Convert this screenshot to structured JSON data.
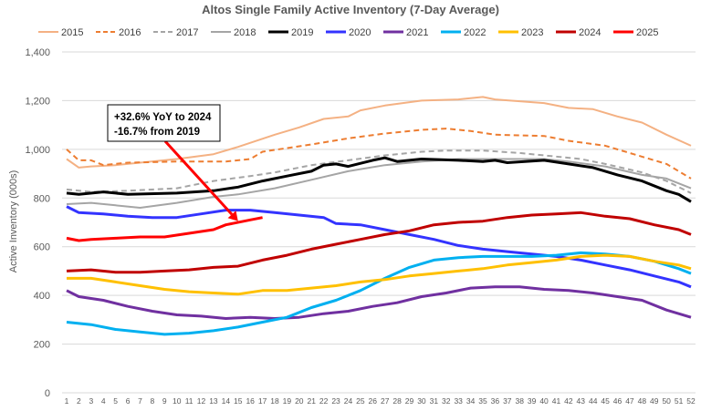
{
  "chart_data": {
    "type": "line",
    "title": "Altos Single Family Active Inventory (7-Day Average)",
    "xlabel": "",
    "ylabel": "Active Inventory (000s)",
    "ylim": [
      0,
      1400
    ],
    "yticks": [
      0,
      200,
      400,
      600,
      800,
      1000,
      1200,
      1400
    ],
    "ytick_labels": [
      "0",
      "200",
      "400",
      "600",
      "800",
      "1,000",
      "1,200",
      "1,400"
    ],
    "xlim": [
      1,
      52
    ],
    "grid": true,
    "legend_position": "top",
    "annotation": {
      "lines": [
        "+32.6% YoY to 2024",
        "-16.7% from 2019"
      ],
      "arrow_color": "#ff0000",
      "points_to": [
        15,
        705
      ]
    },
    "series": [
      {
        "name": "2015",
        "color": "#f4b183",
        "dash": false,
        "width": 2,
        "points": [
          [
            1,
            960
          ],
          [
            2,
            925
          ],
          [
            3,
            930
          ],
          [
            5,
            935
          ],
          [
            10,
            960
          ],
          [
            13,
            980
          ],
          [
            15,
            1010
          ],
          [
            18,
            1060
          ],
          [
            20,
            1090
          ],
          [
            22,
            1125
          ],
          [
            24,
            1135
          ],
          [
            25,
            1160
          ],
          [
            27,
            1180
          ],
          [
            30,
            1200
          ],
          [
            33,
            1205
          ],
          [
            35,
            1215
          ],
          [
            36,
            1205
          ],
          [
            40,
            1190
          ],
          [
            42,
            1170
          ],
          [
            44,
            1165
          ],
          [
            46,
            1135
          ],
          [
            48,
            1110
          ],
          [
            50,
            1060
          ],
          [
            52,
            1015
          ]
        ]
      },
      {
        "name": "2016",
        "color": "#ed7d31",
        "dash": true,
        "width": 2,
        "points": [
          [
            1,
            1000
          ],
          [
            2,
            955
          ],
          [
            3,
            955
          ],
          [
            4,
            935
          ],
          [
            6,
            945
          ],
          [
            10,
            950
          ],
          [
            14,
            950
          ],
          [
            16,
            960
          ],
          [
            17,
            990
          ],
          [
            19,
            1005
          ],
          [
            21,
            1020
          ],
          [
            24,
            1045
          ],
          [
            27,
            1065
          ],
          [
            30,
            1080
          ],
          [
            32,
            1085
          ],
          [
            34,
            1075
          ],
          [
            36,
            1060
          ],
          [
            40,
            1055
          ],
          [
            42,
            1035
          ],
          [
            45,
            1015
          ],
          [
            48,
            970
          ],
          [
            50,
            940
          ],
          [
            52,
            880
          ]
        ]
      },
      {
        "name": "2017",
        "color": "#a5a5a5",
        "dash": true,
        "width": 2,
        "points": [
          [
            1,
            835
          ],
          [
            3,
            825
          ],
          [
            6,
            830
          ],
          [
            10,
            840
          ],
          [
            13,
            870
          ],
          [
            16,
            890
          ],
          [
            18,
            905
          ],
          [
            21,
            935
          ],
          [
            24,
            955
          ],
          [
            27,
            975
          ],
          [
            30,
            990
          ],
          [
            32,
            995
          ],
          [
            35,
            995
          ],
          [
            38,
            985
          ],
          [
            40,
            975
          ],
          [
            43,
            960
          ],
          [
            45,
            940
          ],
          [
            48,
            905
          ],
          [
            50,
            870
          ],
          [
            52,
            820
          ]
        ]
      },
      {
        "name": "2018",
        "color": "#a5a5a5",
        "dash": false,
        "width": 2,
        "points": [
          [
            1,
            775
          ],
          [
            3,
            780
          ],
          [
            5,
            770
          ],
          [
            7,
            760
          ],
          [
            10,
            780
          ],
          [
            13,
            805
          ],
          [
            15,
            815
          ],
          [
            18,
            840
          ],
          [
            21,
            875
          ],
          [
            24,
            910
          ],
          [
            27,
            935
          ],
          [
            30,
            950
          ],
          [
            33,
            960
          ],
          [
            36,
            960
          ],
          [
            40,
            960
          ],
          [
            42,
            950
          ],
          [
            45,
            930
          ],
          [
            48,
            895
          ],
          [
            50,
            880
          ],
          [
            52,
            840
          ]
        ]
      },
      {
        "name": "2019",
        "color": "#000000",
        "dash": false,
        "width": 3,
        "points": [
          [
            1,
            820
          ],
          [
            2,
            815
          ],
          [
            4,
            825
          ],
          [
            5,
            820
          ],
          [
            6,
            815
          ],
          [
            10,
            820
          ],
          [
            13,
            830
          ],
          [
            15,
            845
          ],
          [
            17,
            870
          ],
          [
            19,
            890
          ],
          [
            21,
            910
          ],
          [
            22,
            935
          ],
          [
            23,
            940
          ],
          [
            24,
            930
          ],
          [
            26,
            955
          ],
          [
            27,
            965
          ],
          [
            28,
            950
          ],
          [
            30,
            960
          ],
          [
            33,
            955
          ],
          [
            35,
            950
          ],
          [
            36,
            955
          ],
          [
            37,
            945
          ],
          [
            40,
            955
          ],
          [
            42,
            940
          ],
          [
            44,
            925
          ],
          [
            46,
            895
          ],
          [
            48,
            870
          ],
          [
            50,
            830
          ],
          [
            51,
            815
          ],
          [
            52,
            785
          ]
        ]
      },
      {
        "name": "2020",
        "color": "#3333ff",
        "dash": false,
        "width": 3,
        "points": [
          [
            1,
            765
          ],
          [
            2,
            740
          ],
          [
            4,
            735
          ],
          [
            6,
            725
          ],
          [
            8,
            720
          ],
          [
            10,
            720
          ],
          [
            12,
            735
          ],
          [
            14,
            750
          ],
          [
            16,
            750
          ],
          [
            18,
            740
          ],
          [
            20,
            730
          ],
          [
            22,
            720
          ],
          [
            23,
            695
          ],
          [
            25,
            690
          ],
          [
            27,
            670
          ],
          [
            29,
            650
          ],
          [
            31,
            630
          ],
          [
            33,
            605
          ],
          [
            35,
            590
          ],
          [
            37,
            580
          ],
          [
            39,
            570
          ],
          [
            41,
            560
          ],
          [
            43,
            545
          ],
          [
            45,
            525
          ],
          [
            47,
            505
          ],
          [
            49,
            480
          ],
          [
            51,
            455
          ],
          [
            52,
            435
          ]
        ]
      },
      {
        "name": "2021",
        "color": "#7030a0",
        "dash": false,
        "width": 3,
        "points": [
          [
            1,
            420
          ],
          [
            2,
            395
          ],
          [
            4,
            380
          ],
          [
            6,
            355
          ],
          [
            8,
            335
          ],
          [
            10,
            320
          ],
          [
            12,
            315
          ],
          [
            14,
            305
          ],
          [
            16,
            310
          ],
          [
            18,
            305
          ],
          [
            20,
            310
          ],
          [
            22,
            325
          ],
          [
            24,
            335
          ],
          [
            26,
            355
          ],
          [
            28,
            370
          ],
          [
            30,
            395
          ],
          [
            32,
            410
          ],
          [
            34,
            430
          ],
          [
            36,
            435
          ],
          [
            38,
            435
          ],
          [
            40,
            425
          ],
          [
            42,
            420
          ],
          [
            44,
            410
          ],
          [
            46,
            395
          ],
          [
            48,
            380
          ],
          [
            50,
            340
          ],
          [
            52,
            310
          ]
        ]
      },
      {
        "name": "2022",
        "color": "#00b0f0",
        "dash": false,
        "width": 3,
        "points": [
          [
            1,
            290
          ],
          [
            3,
            280
          ],
          [
            5,
            260
          ],
          [
            7,
            250
          ],
          [
            9,
            240
          ],
          [
            11,
            245
          ],
          [
            13,
            255
          ],
          [
            15,
            270
          ],
          [
            17,
            290
          ],
          [
            19,
            310
          ],
          [
            21,
            350
          ],
          [
            23,
            380
          ],
          [
            25,
            420
          ],
          [
            27,
            470
          ],
          [
            29,
            515
          ],
          [
            31,
            545
          ],
          [
            33,
            555
          ],
          [
            35,
            560
          ],
          [
            37,
            560
          ],
          [
            39,
            560
          ],
          [
            41,
            565
          ],
          [
            43,
            575
          ],
          [
            45,
            570
          ],
          [
            47,
            560
          ],
          [
            49,
            540
          ],
          [
            51,
            510
          ],
          [
            52,
            490
          ]
        ]
      },
      {
        "name": "2023",
        "color": "#ffc000",
        "dash": false,
        "width": 3,
        "points": [
          [
            1,
            470
          ],
          [
            3,
            470
          ],
          [
            5,
            455
          ],
          [
            7,
            440
          ],
          [
            9,
            425
          ],
          [
            11,
            415
          ],
          [
            13,
            410
          ],
          [
            15,
            405
          ],
          [
            17,
            420
          ],
          [
            19,
            420
          ],
          [
            21,
            430
          ],
          [
            23,
            440
          ],
          [
            25,
            455
          ],
          [
            27,
            465
          ],
          [
            29,
            480
          ],
          [
            31,
            490
          ],
          [
            33,
            500
          ],
          [
            35,
            510
          ],
          [
            37,
            525
          ],
          [
            39,
            535
          ],
          [
            41,
            545
          ],
          [
            43,
            560
          ],
          [
            45,
            565
          ],
          [
            47,
            560
          ],
          [
            49,
            540
          ],
          [
            51,
            525
          ],
          [
            52,
            510
          ]
        ]
      },
      {
        "name": "2024",
        "color": "#c00000",
        "dash": false,
        "width": 3,
        "points": [
          [
            1,
            500
          ],
          [
            3,
            505
          ],
          [
            5,
            495
          ],
          [
            7,
            495
          ],
          [
            9,
            500
          ],
          [
            11,
            505
          ],
          [
            13,
            515
          ],
          [
            15,
            520
          ],
          [
            17,
            545
          ],
          [
            19,
            565
          ],
          [
            21,
            590
          ],
          [
            23,
            610
          ],
          [
            25,
            630
          ],
          [
            27,
            650
          ],
          [
            29,
            665
          ],
          [
            31,
            690
          ],
          [
            33,
            700
          ],
          [
            35,
            705
          ],
          [
            37,
            720
          ],
          [
            39,
            730
          ],
          [
            41,
            735
          ],
          [
            43,
            740
          ],
          [
            45,
            725
          ],
          [
            47,
            715
          ],
          [
            49,
            690
          ],
          [
            51,
            670
          ],
          [
            52,
            650
          ]
        ]
      },
      {
        "name": "2025",
        "color": "#ff0000",
        "dash": false,
        "width": 3,
        "points": [
          [
            1,
            635
          ],
          [
            2,
            625
          ],
          [
            3,
            630
          ],
          [
            5,
            635
          ],
          [
            7,
            640
          ],
          [
            9,
            640
          ],
          [
            11,
            655
          ],
          [
            13,
            670
          ],
          [
            14,
            690
          ],
          [
            16,
            710
          ],
          [
            17,
            720
          ]
        ]
      }
    ]
  }
}
